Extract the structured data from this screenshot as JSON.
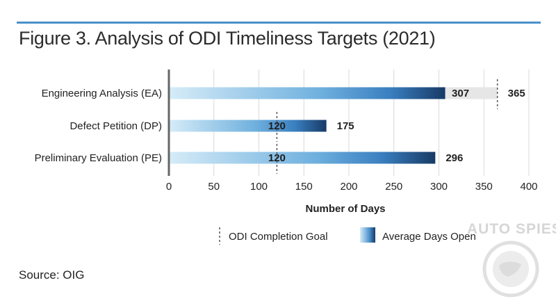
{
  "title": "Figure 3. Analysis of ODI Timeliness Targets (2021)",
  "source": "Source: OIG",
  "watermark": "AUTO SPIES",
  "chart_data": {
    "type": "bar",
    "orientation": "horizontal",
    "categories": [
      "Engineering Analysis (EA)",
      "Defect Petition (DP)",
      "Preliminary Evaluation (PE)"
    ],
    "series": [
      {
        "name": "Average Days Open",
        "values": [
          307,
          175,
          296
        ]
      }
    ],
    "goals": [
      {
        "name": "ODI Completion Goal",
        "values": [
          365,
          120,
          120
        ]
      }
    ],
    "xlabel": "Number of Days",
    "ylabel": "",
    "xlim": [
      0,
      400
    ],
    "xticks": [
      0,
      50,
      100,
      150,
      200,
      250,
      300,
      350,
      400
    ],
    "grid": true,
    "legend_position": "bottom-center",
    "legend": [
      "ODI Completion Goal",
      "Average Days Open"
    ],
    "colors": {
      "bar_start": "#d6ecf8",
      "bar_mid": "#5aa2d6",
      "bar_end": "#173a66",
      "goal_line": "#555555",
      "goal_extension": "#e6e6e6",
      "grid": "#d9d9d9",
      "axis": "#666666",
      "rule": "#4a90c9"
    }
  }
}
